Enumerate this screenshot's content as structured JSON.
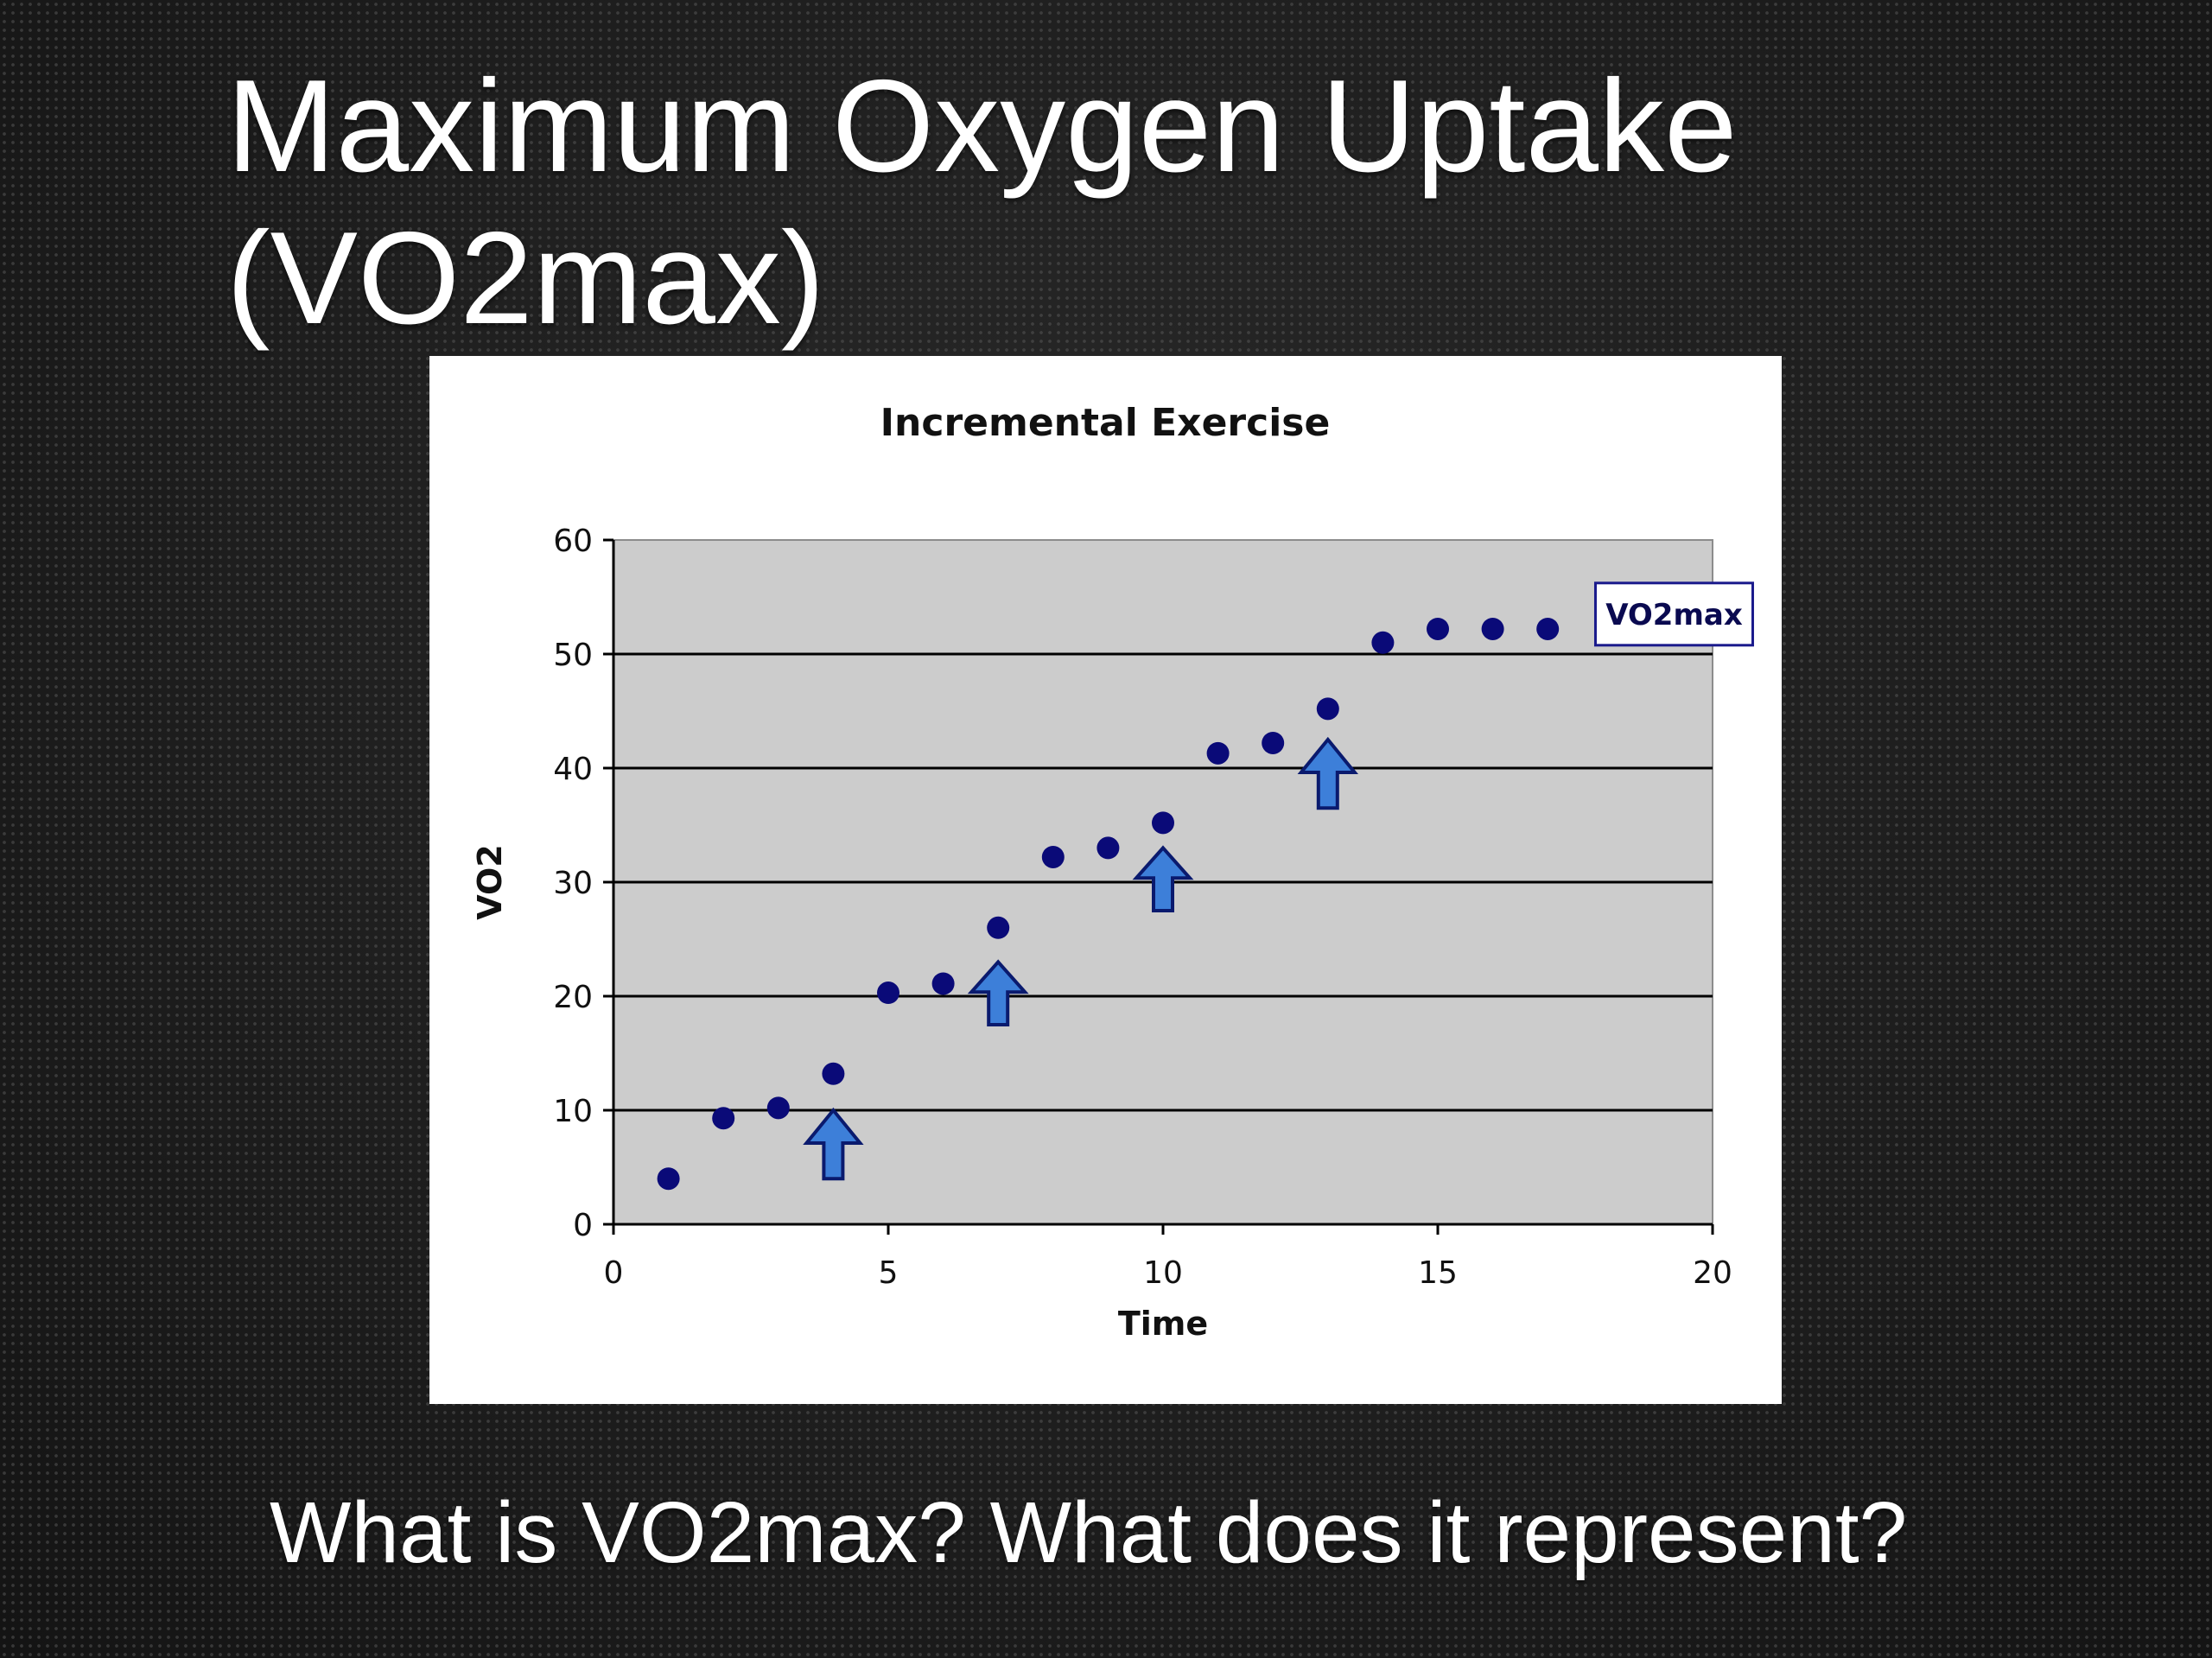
{
  "slide": {
    "title_line1": "Maximum Oxygen Uptake",
    "title_line2": "(VO2max)",
    "question": "What is VO2max? What does it represent?"
  },
  "colors": {
    "plot_background": "#cccccc",
    "point": "#0a0a78",
    "arrow_fill": "#3d7fd9",
    "arrow_stroke": "#0a1a6e",
    "annotation_border": "#1a1a8c"
  },
  "chart_data": {
    "type": "scatter",
    "title": "Incremental Exercise",
    "xlabel": "Time",
    "ylabel": "VO2",
    "xlim": [
      0,
      20
    ],
    "ylim": [
      0,
      60
    ],
    "xticks": [
      0,
      5,
      10,
      15,
      20
    ],
    "yticks": [
      0,
      10,
      20,
      30,
      40,
      50,
      60
    ],
    "grid": "horizontal",
    "series": [
      {
        "x": [
          1,
          2,
          3,
          4,
          5,
          6,
          7,
          8,
          9,
          10,
          11,
          12,
          13,
          14,
          15,
          16,
          17
        ],
        "y": [
          4,
          9.3,
          10.2,
          13.2,
          20.3,
          21.1,
          26,
          32.2,
          33,
          35.2,
          41.3,
          42.2,
          45.2,
          51,
          52.2,
          52.2,
          52.2
        ]
      }
    ],
    "arrows": [
      {
        "x": 4,
        "y_top": 10,
        "y_bottom": 4
      },
      {
        "x": 7,
        "y_top": 23,
        "y_bottom": 17.5
      },
      {
        "x": 10,
        "y_top": 33,
        "y_bottom": 27.5
      },
      {
        "x": 13,
        "y_top": 42.5,
        "y_bottom": 36.5
      }
    ],
    "annotations": [
      {
        "text": "VO2max",
        "x": 19.3,
        "y": 53.5
      }
    ]
  }
}
